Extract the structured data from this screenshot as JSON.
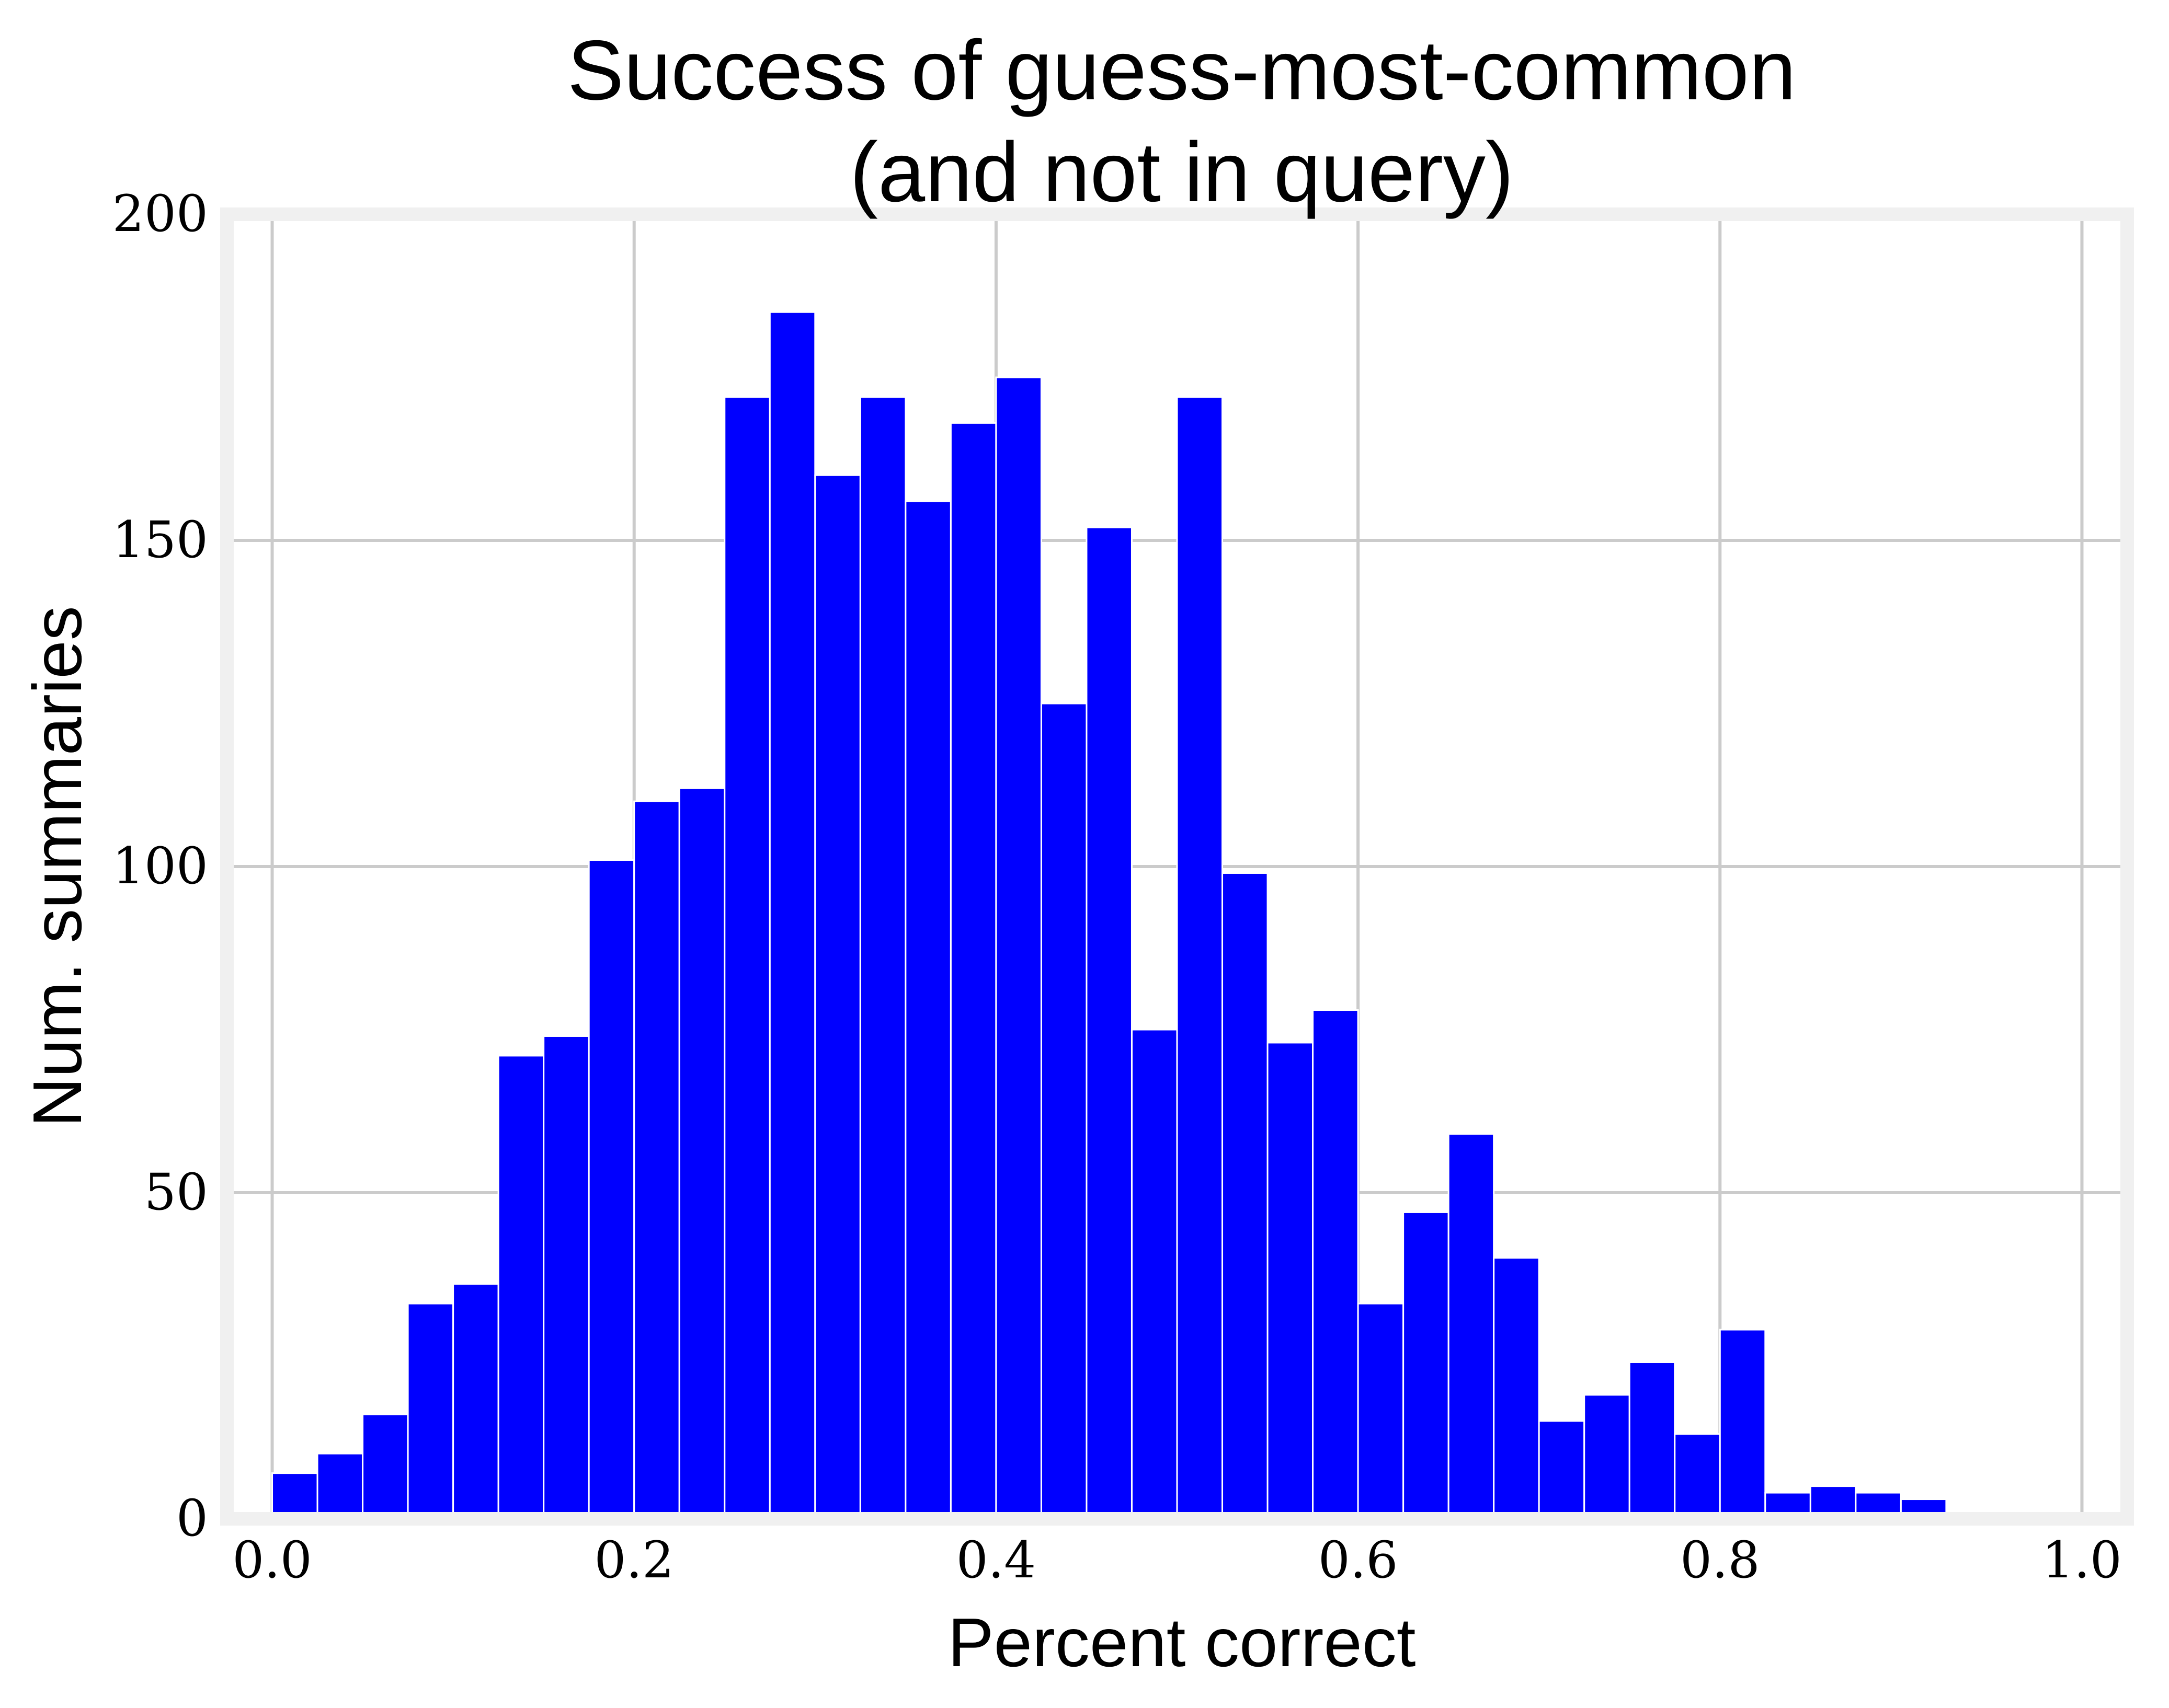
{
  "chart_data": {
    "type": "bar",
    "title": [
      "Success of guess-most-common",
      "(and not in query)"
    ],
    "xlabel": "Percent correct",
    "ylabel": "Num. summaries",
    "xlim": [
      -0.025,
      1.025
    ],
    "ylim": [
      0,
      200
    ],
    "xticks": [
      0.0,
      0.2,
      0.4,
      0.6,
      0.8,
      1.0
    ],
    "xtick_labels": [
      "0.0",
      "0.2",
      "0.4",
      "0.6",
      "0.8",
      "1.0"
    ],
    "yticks": [
      0,
      50,
      100,
      150,
      200
    ],
    "ytick_labels": [
      "0",
      "50",
      "100",
      "150",
      "200"
    ],
    "grid": true,
    "bar_color": "#0000ff",
    "bin_start": 0.0,
    "bin_width": 0.025,
    "values": [
      7,
      10,
      16,
      33,
      36,
      71,
      74,
      101,
      110,
      112,
      172,
      185,
      160,
      172,
      156,
      168,
      175,
      125,
      152,
      75,
      172,
      99,
      73,
      78,
      33,
      47,
      59,
      40,
      15,
      19,
      24,
      13,
      29,
      4,
      5,
      4,
      3,
      0,
      0.5,
      0
    ]
  }
}
